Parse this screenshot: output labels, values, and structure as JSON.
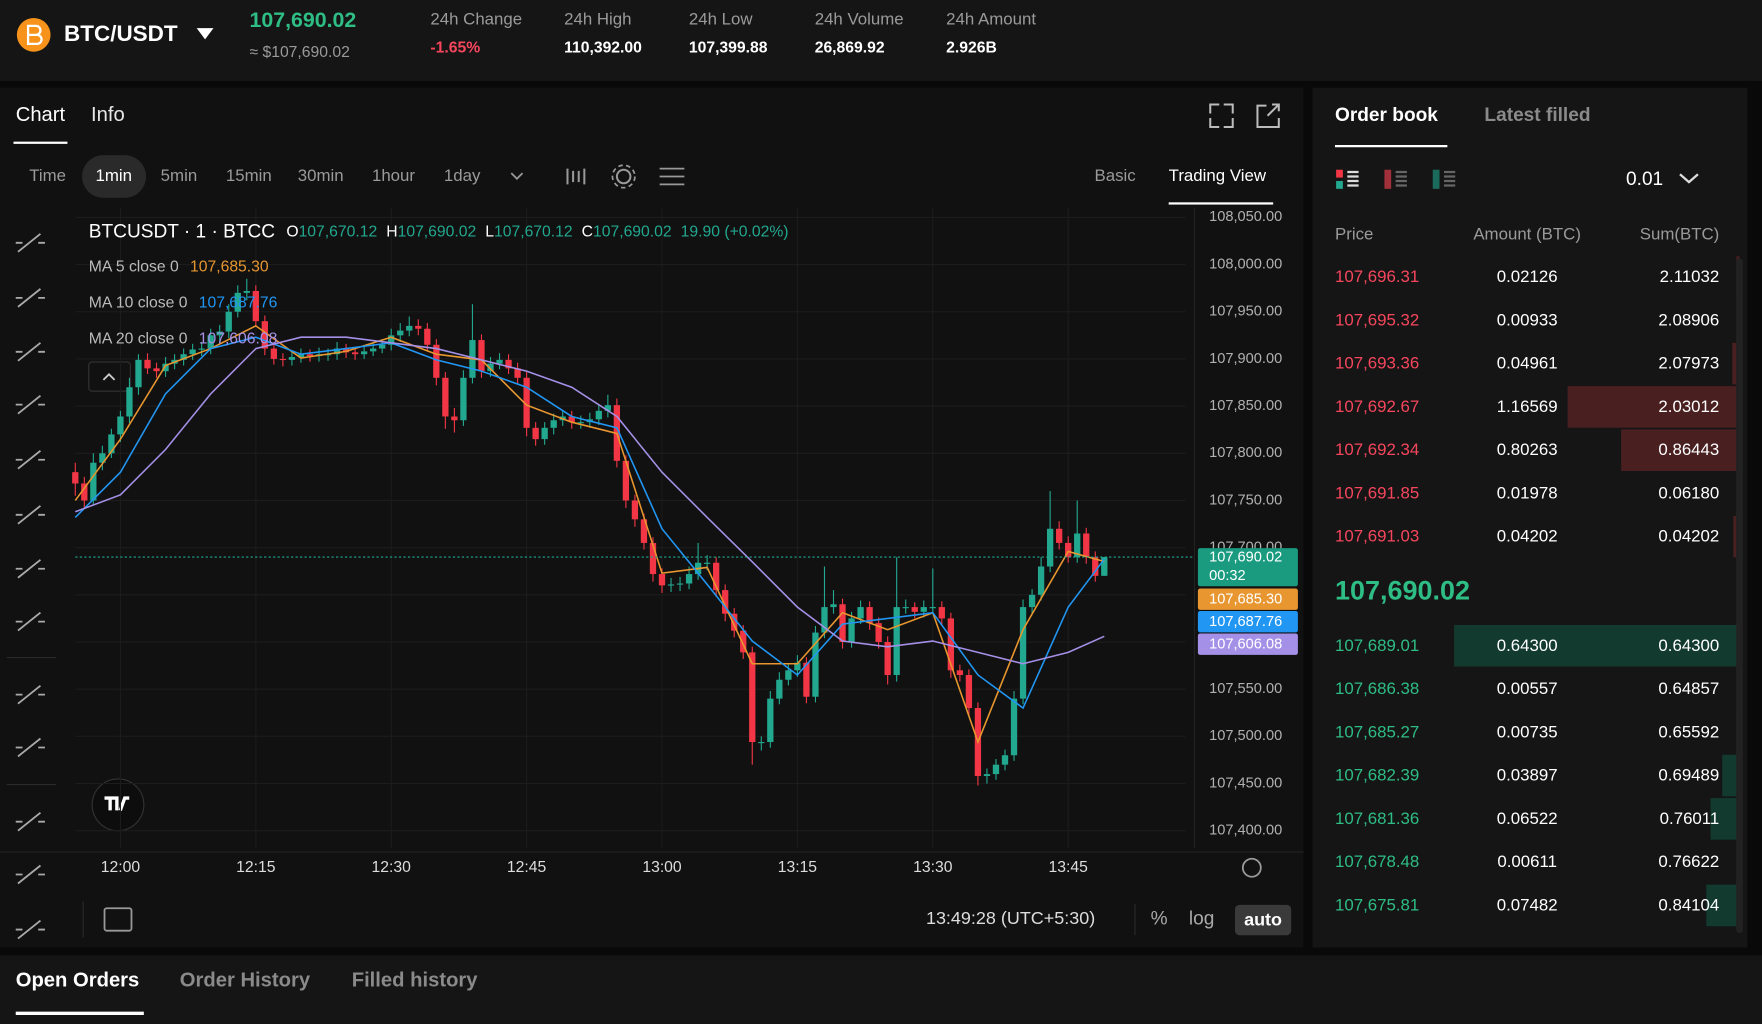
{
  "header": {
    "pair": "BTC/USDT",
    "last_price": "107,690.02",
    "last_price_usd": "≈ $107,690.02",
    "stats": [
      {
        "label": "24h Change",
        "value": "-1.65%"
      },
      {
        "label": "24h High",
        "value": "110,392.00"
      },
      {
        "label": "24h Low",
        "value": "107,399.88"
      },
      {
        "label": "24h Volume",
        "value": "26,869.92"
      },
      {
        "label": "24h Amount",
        "value": "2.926B"
      }
    ]
  },
  "chart_tabs": [
    "Chart",
    "Info"
  ],
  "intervals": [
    "Time",
    "1min",
    "5min",
    "15min",
    "30min",
    "1hour",
    "1day"
  ],
  "views": [
    "Basic",
    "Trading View"
  ],
  "chart_data": {
    "type": "candlestick",
    "symbol_line": "BTCUSDT · 1 · BTCC",
    "ohlc_legend": [
      {
        "key": "O",
        "value": "107,670.12"
      },
      {
        "key": "H",
        "value": "107,690.02"
      },
      {
        "key": "L",
        "value": "107,670.12"
      },
      {
        "key": "C",
        "value": "107,690.02"
      }
    ],
    "change_label": "19.90 (+0.02%)",
    "up_color": "#22a88f",
    "down_color": "#f23645",
    "x": [
      "11:55",
      "11:56",
      "11:57",
      "11:58",
      "11:59",
      "12:00",
      "12:01",
      "12:02",
      "12:03",
      "12:04",
      "12:05",
      "12:06",
      "12:07",
      "12:08",
      "12:09",
      "12:10",
      "12:11",
      "12:12",
      "12:13",
      "12:14",
      "12:15",
      "12:16",
      "12:17",
      "12:18",
      "12:19",
      "12:20",
      "12:21",
      "12:22",
      "12:23",
      "12:24",
      "12:25",
      "12:26",
      "12:27",
      "12:28",
      "12:29",
      "12:30",
      "12:31",
      "12:32",
      "12:33",
      "12:34",
      "12:35",
      "12:36",
      "12:37",
      "12:38",
      "12:39",
      "12:40",
      "12:41",
      "12:42",
      "12:43",
      "12:44",
      "12:45",
      "12:46",
      "12:47",
      "12:48",
      "12:49",
      "12:50",
      "12:51",
      "12:52",
      "12:53",
      "12:54",
      "12:55",
      "12:56",
      "12:57",
      "12:58",
      "12:59",
      "13:00",
      "13:01",
      "13:02",
      "13:03",
      "13:04",
      "13:05",
      "13:06",
      "13:07",
      "13:08",
      "13:09",
      "13:10",
      "13:11",
      "13:12",
      "13:13",
      "13:14",
      "13:15",
      "13:16",
      "13:17",
      "13:18",
      "13:19",
      "13:20",
      "13:21",
      "13:22",
      "13:23",
      "13:24",
      "13:25",
      "13:26",
      "13:27",
      "13:28",
      "13:29",
      "13:30",
      "13:31",
      "13:32",
      "13:33",
      "13:34",
      "13:35",
      "13:36",
      "13:37",
      "13:38",
      "13:39",
      "13:40",
      "13:41",
      "13:42",
      "13:43",
      "13:44",
      "13:45",
      "13:46",
      "13:47",
      "13:48",
      "13:49"
    ],
    "ohlc": [
      [
        107780,
        107790,
        107755,
        107768
      ],
      [
        107768,
        107775,
        107742,
        107750
      ],
      [
        107750,
        107800,
        107745,
        107790
      ],
      [
        107790,
        107808,
        107782,
        107800
      ],
      [
        107800,
        107826,
        107795,
        107820
      ],
      [
        107820,
        107845,
        107812,
        107839
      ],
      [
        107839,
        107880,
        107832,
        107870
      ],
      [
        107870,
        107905,
        107862,
        107899
      ],
      [
        107899,
        107906,
        107884,
        107890
      ],
      [
        107890,
        107896,
        107880,
        107887
      ],
      [
        107887,
        107902,
        107881,
        107895
      ],
      [
        107895,
        107905,
        107889,
        107899
      ],
      [
        107899,
        107911,
        107893,
        107905
      ],
      [
        107905,
        107916,
        107899,
        107910
      ],
      [
        107910,
        107918,
        107903,
        107911
      ],
      [
        107911,
        107932,
        107905,
        107925
      ],
      [
        107925,
        107936,
        107918,
        107929
      ],
      [
        107929,
        107958,
        107922,
        107950
      ],
      [
        107950,
        107978,
        107944,
        107970
      ],
      [
        107970,
        107985,
        107962,
        107972
      ],
      [
        107972,
        107978,
        107934,
        107940
      ],
      [
        107940,
        107946,
        107904,
        107911
      ],
      [
        107911,
        107916,
        107894,
        107900
      ],
      [
        107900,
        107906,
        107892,
        107899
      ],
      [
        107899,
        107908,
        107893,
        107902
      ],
      [
        107902,
        107911,
        107896,
        107905
      ],
      [
        107905,
        107910,
        107897,
        107903
      ],
      [
        107903,
        107912,
        107897,
        107905
      ],
      [
        107905,
        107911,
        107898,
        107905
      ],
      [
        107905,
        107918,
        107899,
        107911
      ],
      [
        107911,
        107916,
        107901,
        107907
      ],
      [
        107907,
        107912,
        107899,
        107905
      ],
      [
        107905,
        107914,
        107900,
        107908
      ],
      [
        107908,
        107917,
        107903,
        107911
      ],
      [
        107911,
        107921,
        107906,
        107915
      ],
      [
        107915,
        107932,
        107909,
        107925
      ],
      [
        107925,
        107938,
        107918,
        107930
      ],
      [
        107930,
        107945,
        107924,
        107935
      ],
      [
        107935,
        107942,
        107925,
        107932
      ],
      [
        107932,
        107938,
        107908,
        107915
      ],
      [
        107915,
        107921,
        107872,
        107880
      ],
      [
        107880,
        107886,
        107826,
        107839
      ],
      [
        107839,
        107848,
        107822,
        107835
      ],
      [
        107835,
        107888,
        107829,
        107880
      ],
      [
        107880,
        107958,
        107874,
        107920
      ],
      [
        107920,
        107926,
        107880,
        107887
      ],
      [
        107887,
        107902,
        107881,
        107895
      ],
      [
        107895,
        107906,
        107889,
        107899
      ],
      [
        107899,
        107905,
        107884,
        107890
      ],
      [
        107890,
        107896,
        107873,
        107880
      ],
      [
        107880,
        107886,
        107818,
        107827
      ],
      [
        107827,
        107833,
        107808,
        107815
      ],
      [
        107815,
        107833,
        107809,
        107827
      ],
      [
        107827,
        107842,
        107820,
        107835
      ],
      [
        107835,
        107845,
        107829,
        107839
      ],
      [
        107839,
        107845,
        107826,
        107833
      ],
      [
        107833,
        107840,
        107826,
        107833
      ],
      [
        107833,
        107843,
        107827,
        107836
      ],
      [
        107836,
        107852,
        107830,
        107845
      ],
      [
        107845,
        107862,
        107838,
        107851
      ],
      [
        107851,
        107858,
        107785,
        107792
      ],
      [
        107792,
        107798,
        107742,
        107750
      ],
      [
        107750,
        107756,
        107722,
        107730
      ],
      [
        107730,
        107736,
        107698,
        107705
      ],
      [
        107705,
        107711,
        107664,
        107672
      ],
      [
        107672,
        107678,
        107652,
        107660
      ],
      [
        107660,
        107668,
        107653,
        107661
      ],
      [
        107661,
        107669,
        107654,
        107662
      ],
      [
        107662,
        107680,
        107656,
        107672
      ],
      [
        107672,
        107705,
        107666,
        107684
      ],
      [
        107684,
        107692,
        107676,
        107684
      ],
      [
        107684,
        107690,
        107648,
        107655
      ],
      [
        107655,
        107661,
        107622,
        107630
      ],
      [
        107630,
        107636,
        107605,
        107612
      ],
      [
        107612,
        107618,
        107582,
        107589
      ],
      [
        107589,
        107595,
        107470,
        107494
      ],
      [
        107494,
        107500,
        107485,
        107494
      ],
      [
        107494,
        107548,
        107488,
        107540
      ],
      [
        107540,
        107568,
        107534,
        107560
      ],
      [
        107560,
        107577,
        107554,
        107570
      ],
      [
        107570,
        107586,
        107563,
        107578
      ],
      [
        107578,
        107584,
        107535,
        107542
      ],
      [
        107542,
        107617,
        107536,
        107610
      ],
      [
        107610,
        107680,
        107604,
        107637
      ],
      [
        107637,
        107655,
        107630,
        107640
      ],
      [
        107640,
        107646,
        107593,
        107600
      ],
      [
        107600,
        107632,
        107594,
        107625
      ],
      [
        107625,
        107644,
        107619,
        107637
      ],
      [
        107637,
        107643,
        107613,
        107620
      ],
      [
        107620,
        107626,
        107593,
        107600
      ],
      [
        107600,
        107606,
        107555,
        107565
      ],
      [
        107565,
        107690,
        107558,
        107637
      ],
      [
        107637,
        107645,
        107630,
        107637
      ],
      [
        107637,
        107642,
        107625,
        107632
      ],
      [
        107632,
        107644,
        107626,
        107637
      ],
      [
        107637,
        107678,
        107630,
        107637
      ],
      [
        107637,
        107643,
        107618,
        107625
      ],
      [
        107625,
        107631,
        107562,
        107570
      ],
      [
        107570,
        107576,
        107558,
        107565
      ],
      [
        107565,
        107571,
        107522,
        107530
      ],
      [
        107530,
        107536,
        107448,
        107458
      ],
      [
        107458,
        107466,
        107450,
        107460
      ],
      [
        107460,
        107476,
        107454,
        107470
      ],
      [
        107470,
        107486,
        107464,
        107480
      ],
      [
        107480,
        107548,
        107474,
        107540
      ],
      [
        107540,
        107645,
        107534,
        107637
      ],
      [
        107637,
        107656,
        107630,
        107650
      ],
      [
        107650,
        107690,
        107644,
        107680
      ],
      [
        107680,
        107760,
        107674,
        107720
      ],
      [
        107720,
        107728,
        107698,
        107705
      ],
      [
        107705,
        107712,
        107684,
        107690
      ],
      [
        107690,
        107750,
        107684,
        107715
      ],
      [
        107715,
        107721,
        107683,
        107690
      ],
      [
        107690,
        107696,
        107664,
        107670.12
      ],
      [
        107670.12,
        107690.02,
        107670.12,
        107690.02
      ]
    ],
    "ma": [
      {
        "name": "MA 5 close 0",
        "color": "#e8962f",
        "value_label": "107,685.30",
        "x": [
          "11:55",
          "12:00",
          "12:05",
          "12:10",
          "12:15",
          "12:20",
          "12:25",
          "12:30",
          "12:35",
          "12:40",
          "12:45",
          "12:50",
          "12:55",
          "13:00",
          "13:05",
          "13:10",
          "13:15",
          "13:20",
          "13:25",
          "13:30",
          "13:35",
          "13:40",
          "13:45",
          "13:49"
        ],
        "values": [
          107750,
          107815,
          107893,
          107911,
          107935,
          107901,
          107908,
          107923,
          107905,
          107899,
          107851,
          107833,
          107821,
          107673,
          107679,
          107577,
          107577,
          107631,
          107613,
          107631,
          107494,
          107613,
          107696,
          107685.3
        ]
      },
      {
        "name": "MA 10 close 0",
        "color": "#2196f3",
        "value_label": "107,687.76",
        "x": [
          "11:55",
          "12:00",
          "12:05",
          "12:10",
          "12:15",
          "12:20",
          "12:25",
          "12:30",
          "12:35",
          "12:40",
          "12:45",
          "12:50",
          "12:55",
          "13:00",
          "13:05",
          "13:10",
          "13:15",
          "13:20",
          "13:25",
          "13:30",
          "13:35",
          "13:40",
          "13:45",
          "13:49"
        ],
        "values": [
          107732,
          107780,
          107863,
          107911,
          107923,
          107905,
          107911,
          107917,
          107899,
          107887,
          107870,
          107839,
          107827,
          107720,
          107661,
          107601,
          107565,
          107619,
          107625,
          107631,
          107565,
          107530,
          107637,
          107687.76
        ]
      },
      {
        "name": "MA 20 close 0",
        "color": "#a590e8",
        "value_label": "107,606.08",
        "x": [
          "11:55",
          "12:00",
          "12:05",
          "12:10",
          "12:15",
          "12:20",
          "12:25",
          "12:30",
          "12:35",
          "12:40",
          "12:45",
          "12:50",
          "12:55",
          "13:00",
          "13:05",
          "13:10",
          "13:15",
          "13:20",
          "13:25",
          "13:30",
          "13:35",
          "13:40",
          "13:45",
          "13:49"
        ],
        "values": [
          107738,
          107756,
          107804,
          107863,
          107911,
          107923,
          107923,
          107917,
          107911,
          107899,
          107887,
          107870,
          107839,
          107780,
          107732,
          107685,
          107637,
          107601,
          107595,
          107601,
          107589,
          107577,
          107589,
          107606.08
        ]
      }
    ],
    "last_price": 107690.02,
    "last_label": "107,690.02",
    "countdown": "00:32",
    "xlim": [
      "11:55",
      "13:58"
    ],
    "xticks": [
      "12:00",
      "12:15",
      "12:30",
      "12:45",
      "13:00",
      "13:15",
      "13:30",
      "13:45"
    ],
    "ylim": [
      107381,
      108060
    ],
    "yticks": [
      {
        "value": 107400,
        "label": "107,400.00"
      },
      {
        "value": 107450,
        "label": "107,450.00"
      },
      {
        "value": 107500,
        "label": "107,500.00"
      },
      {
        "value": 107550,
        "label": "107,550.00"
      },
      {
        "value": 107600,
        "label": "107,600.00"
      },
      {
        "value": 107650,
        "label": "107,650.00"
      },
      {
        "value": 107700,
        "label": "107,700.00"
      },
      {
        "value": 107750,
        "label": "107,750.00"
      },
      {
        "value": 107800,
        "label": "107,800.00"
      },
      {
        "value": 107850,
        "label": "107,850.00"
      },
      {
        "value": 107900,
        "label": "107,900.00"
      },
      {
        "value": 107950,
        "label": "107,950.00"
      },
      {
        "value": 108000,
        "label": "108,000.00"
      },
      {
        "value": 108050,
        "label": "108,050.00"
      }
    ],
    "grid": true,
    "time_display": "13:49:28 (UTC+5:30)",
    "scale_options": [
      "%",
      "log",
      "auto"
    ],
    "log_scale": false
  },
  "order_book": {
    "tabs": [
      "Order book",
      "Latest filled"
    ],
    "precision": "0.01",
    "columns": [
      "Price",
      "Amount (BTC)",
      "Sum(BTC)"
    ],
    "asks": [
      [
        "107,696.31",
        "0.02126",
        "2.11032"
      ],
      [
        "107,695.32",
        "0.00933",
        "2.08906"
      ],
      [
        "107,693.36",
        "0.04961",
        "2.07973"
      ],
      [
        "107,692.67",
        "1.16569",
        "2.03012"
      ],
      [
        "107,692.34",
        "0.80263",
        "0.86443"
      ],
      [
        "107,691.85",
        "0.01978",
        "0.06180"
      ],
      [
        "107,691.03",
        "0.04202",
        "0.04202"
      ]
    ],
    "mid_price": "107,690.02",
    "bids": [
      [
        "107,689.01",
        "0.64300",
        "0.64300"
      ],
      [
        "107,686.38",
        "0.00557",
        "0.64857"
      ],
      [
        "107,685.27",
        "0.00735",
        "0.65592"
      ],
      [
        "107,682.39",
        "0.03897",
        "0.69489"
      ],
      [
        "107,681.36",
        "0.06522",
        "0.76011"
      ],
      [
        "107,678.48",
        "0.00611",
        "0.76622"
      ],
      [
        "107,675.81",
        "0.07482",
        "0.84104"
      ]
    ]
  },
  "bottom_tabs": [
    "Open Orders",
    "Order History",
    "Filled history"
  ]
}
